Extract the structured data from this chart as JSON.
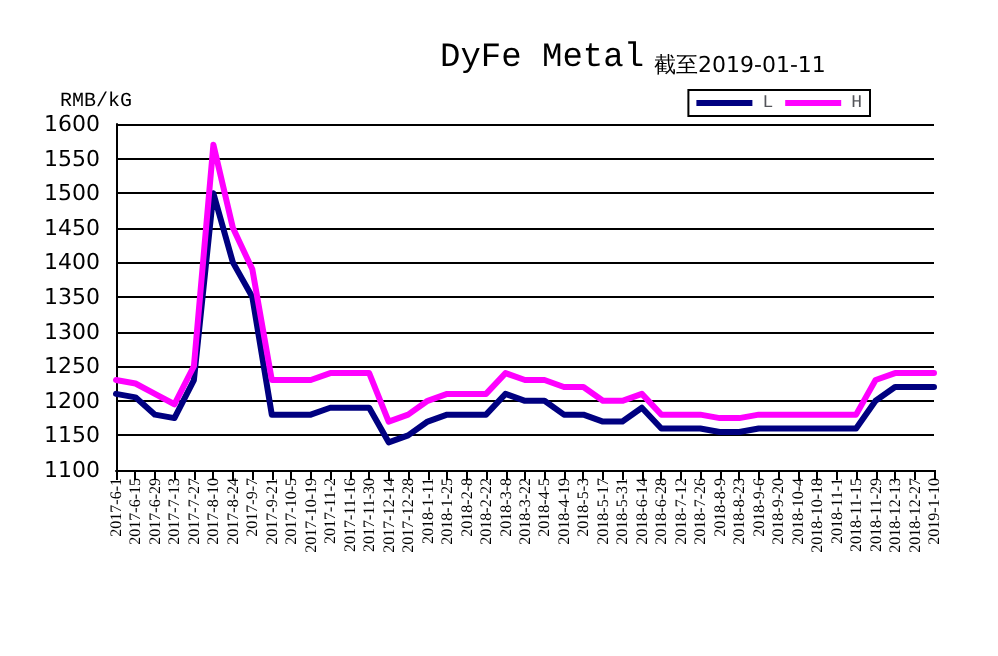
{
  "chart_data": {
    "type": "line",
    "title": "DyFe Metal",
    "subtitle": "截至2019-01-11",
    "ylabel": "RMB/kG",
    "categories": [
      "2017-6-1",
      "2017-6-15",
      "2017-6-29",
      "2017-7-13",
      "2017-7-27",
      "2017-8-10",
      "2017-8-24",
      "2017-9-7",
      "2017-9-21",
      "2017-10-5",
      "2017-10-19",
      "2017-11-2",
      "2017-11-16",
      "2017-11-30",
      "2017-12-14",
      "2017-12-28",
      "2018-1-11",
      "2018-1-25",
      "2018-2-8",
      "2018-2-22",
      "2018-3-8",
      "2018-3-22",
      "2018-4-5",
      "2018-4-19",
      "2018-5-3",
      "2018-5-17",
      "2018-5-31",
      "2018-6-14",
      "2018-6-28",
      "2018-7-12",
      "2018-7-26",
      "2018-8-9",
      "2018-8-23",
      "2018-9-6",
      "2018-9-20",
      "2018-10-4",
      "2018-10-18",
      "2018-11-1",
      "2018-11-15",
      "2018-11-29",
      "2018-12-13",
      "2018-12-27",
      "2019-1-10"
    ],
    "series": [
      {
        "name": "L",
        "color": "#000080",
        "values": [
          1210,
          1205,
          1180,
          1175,
          1230,
          1500,
          1400,
          1350,
          1180,
          1180,
          1180,
          1190,
          1190,
          1190,
          1140,
          1150,
          1170,
          1180,
          1180,
          1180,
          1210,
          1200,
          1200,
          1180,
          1180,
          1170,
          1170,
          1190,
          1160,
          1160,
          1160,
          1155,
          1155,
          1160,
          1160,
          1160,
          1160,
          1160,
          1160,
          1200,
          1220,
          1220,
          1220
        ]
      },
      {
        "name": "H",
        "color": "#ff00ff",
        "values": [
          1230,
          1225,
          1210,
          1195,
          1250,
          1570,
          1450,
          1390,
          1230,
          1230,
          1230,
          1240,
          1240,
          1240,
          1170,
          1180,
          1200,
          1210,
          1210,
          1210,
          1240,
          1230,
          1230,
          1220,
          1220,
          1200,
          1200,
          1210,
          1180,
          1180,
          1180,
          1175,
          1175,
          1180,
          1180,
          1180,
          1180,
          1180,
          1180,
          1230,
          1240,
          1240,
          1240
        ]
      }
    ],
    "ylim": [
      1100,
      1600
    ],
    "yticks": [
      1100,
      1150,
      1200,
      1250,
      1300,
      1350,
      1400,
      1450,
      1500,
      1550,
      1600
    ],
    "grid": "y",
    "legend": "top right",
    "marker": "none",
    "line_style": "solid"
  }
}
